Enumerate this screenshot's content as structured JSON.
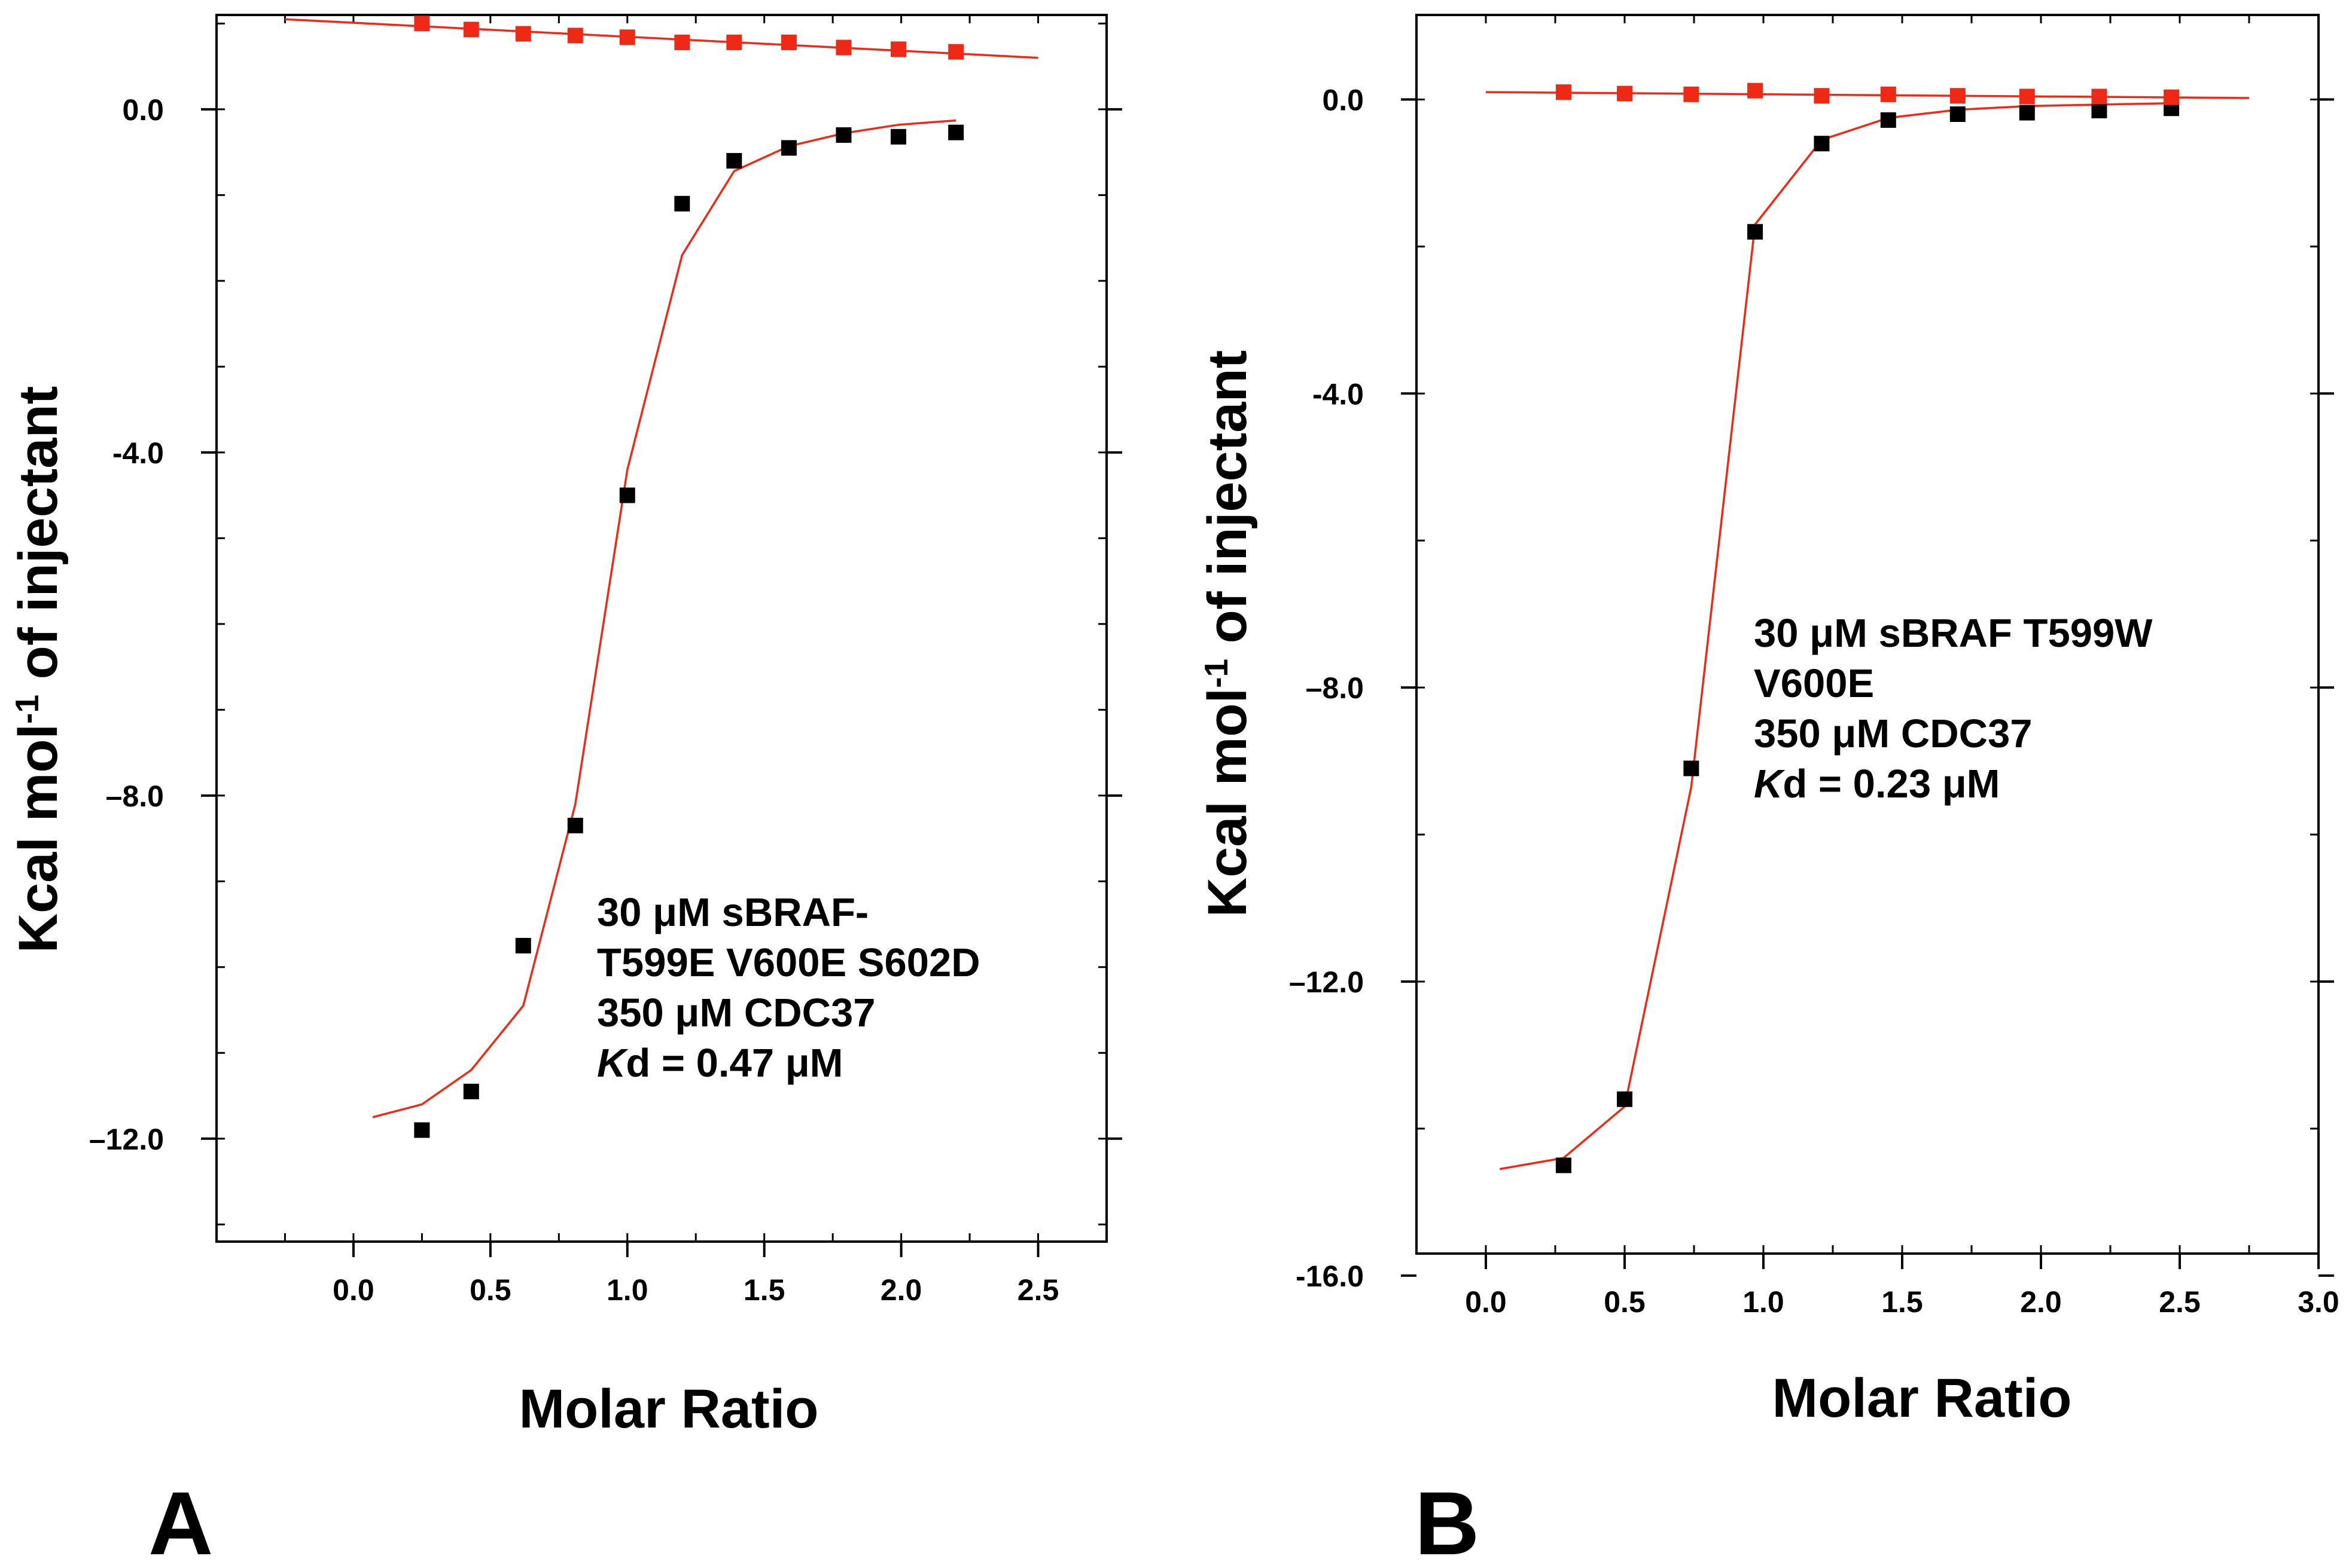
{
  "chart_data": [
    {
      "panel_label": "A",
      "type": "scatter",
      "xlabel": "Molar Ratio",
      "ylabel": {
        "main": "Kcal mol",
        "sup": "-1",
        "rest": " of injectant"
      },
      "xlim": [
        -0.5,
        2.75
      ],
      "ylim": [
        -13.2,
        1.1
      ],
      "xticks": [
        {
          "value": 0.0,
          "label": "0.0"
        },
        {
          "value": 0.5,
          "label": "0.5"
        },
        {
          "value": 1.0,
          "label": "1.0"
        },
        {
          "value": 1.5,
          "label": "1.5"
        },
        {
          "value": 2.0,
          "label": "2.0"
        },
        {
          "value": 2.5,
          "label": "2.5"
        }
      ],
      "yticks": [
        {
          "value": 0.0,
          "label": "0.0"
        },
        {
          "value": -4.0,
          "label": "-4.0"
        },
        {
          "value": -8.0,
          "label": "–8.0"
        },
        {
          "value": -12.0,
          "label": "–12.0"
        }
      ],
      "minor_y_step": 1.0,
      "minor_x_step": 0.25,
      "series": [
        {
          "name": "sample",
          "color": "#000000",
          "marker": "square",
          "x": [
            0.25,
            0.43,
            0.62,
            0.81,
            1.0,
            1.2,
            1.39,
            1.59,
            1.79,
            1.99,
            2.2
          ],
          "y": [
            -11.9,
            -11.45,
            -9.75,
            -8.35,
            -4.5,
            -1.1,
            -0.6,
            -0.45,
            -0.3,
            -0.32,
            -0.27
          ]
        },
        {
          "name": "control",
          "color": "#ee2a16",
          "marker": "square",
          "x": [
            0.25,
            0.43,
            0.62,
            0.81,
            1.0,
            1.2,
            1.39,
            1.59,
            1.79,
            1.99,
            2.2
          ],
          "y": [
            1.0,
            0.93,
            0.88,
            0.86,
            0.84,
            0.78,
            0.78,
            0.78,
            0.72,
            0.7,
            0.67
          ]
        }
      ],
      "fits": [
        {
          "name": "sample-fit",
          "color": "#ee2a16",
          "x": [
            0.07,
            0.25,
            0.43,
            0.62,
            0.81,
            1.0,
            1.2,
            1.39,
            1.59,
            1.79,
            1.99,
            2.2
          ],
          "y": [
            -11.75,
            -11.6,
            -11.2,
            -10.45,
            -8.1,
            -4.2,
            -1.7,
            -0.72,
            -0.43,
            -0.28,
            -0.18,
            -0.13
          ]
        },
        {
          "name": "control-fit",
          "color": "#ee2a16",
          "x": [
            -0.25,
            2.5
          ],
          "y": [
            1.05,
            0.6
          ]
        }
      ],
      "annotation": {
        "lines": [
          "30 μM sBRAF-",
          "T599E V600E S602D",
          "350 μM CDC37"
        ],
        "kd_italic": "K",
        "kd_rest": "d = 0.47 μM"
      }
    },
    {
      "panel_label": "B",
      "type": "scatter",
      "xlabel": "Molar Ratio",
      "ylabel": {
        "main": "Kcal mol",
        "sup": "-1",
        "rest": " of injectant"
      },
      "xlim": [
        -0.25,
        3.0
      ],
      "ylim": [
        -15.7,
        1.15
      ],
      "xticks": [
        {
          "value": 0.0,
          "label": "0.0"
        },
        {
          "value": 0.5,
          "label": "0.5"
        },
        {
          "value": 1.0,
          "label": "1.0"
        },
        {
          "value": 1.5,
          "label": "1.5"
        },
        {
          "value": 2.0,
          "label": "2.0"
        },
        {
          "value": 2.5,
          "label": "2.5"
        },
        {
          "value": 3.0,
          "label": "3.0"
        }
      ],
      "yticks": [
        {
          "value": 0.0,
          "label": "0.0"
        },
        {
          "value": -4.0,
          "label": "-4.0"
        },
        {
          "value": -8.0,
          "label": "–8.0"
        },
        {
          "value": -12.0,
          "label": "–12.0"
        },
        {
          "value": -16.0,
          "label": "-16.0"
        }
      ],
      "minor_y_step": 2.0,
      "minor_x_step": 0.25,
      "series": [
        {
          "name": "sample",
          "color": "#000000",
          "marker": "square",
          "x": [
            0.28,
            0.5,
            0.74,
            0.97,
            1.21,
            1.45,
            1.7,
            1.95,
            2.21,
            2.47
          ],
          "y": [
            -14.5,
            -13.6,
            -9.1,
            -1.8,
            -0.6,
            -0.28,
            -0.2,
            -0.18,
            -0.15,
            -0.12
          ]
        },
        {
          "name": "control",
          "color": "#ee2a16",
          "marker": "square",
          "x": [
            0.28,
            0.5,
            0.74,
            0.97,
            1.21,
            1.45,
            1.7,
            1.95,
            2.21,
            2.47
          ],
          "y": [
            0.1,
            0.08,
            0.07,
            0.12,
            0.05,
            0.07,
            0.05,
            0.04,
            0.04,
            0.03
          ]
        }
      ],
      "fits": [
        {
          "name": "sample-fit",
          "color": "#ee2a16",
          "x": [
            0.05,
            0.28,
            0.5,
            0.74,
            0.97,
            1.21,
            1.45,
            1.7,
            1.95,
            2.21,
            2.47
          ],
          "y": [
            -14.55,
            -14.4,
            -13.7,
            -9.35,
            -1.7,
            -0.55,
            -0.25,
            -0.14,
            -0.09,
            -0.07,
            -0.05
          ]
        },
        {
          "name": "control-fit",
          "color": "#ee2a16",
          "x": [
            0.0,
            2.75
          ],
          "y": [
            0.1,
            0.02
          ]
        }
      ],
      "annotation": {
        "lines": [
          "30 μM sBRAF T599W",
          "V600E",
          "350 μM CDC37"
        ],
        "kd_italic": "K",
        "kd_rest": "d = 0.23 μM"
      }
    }
  ]
}
